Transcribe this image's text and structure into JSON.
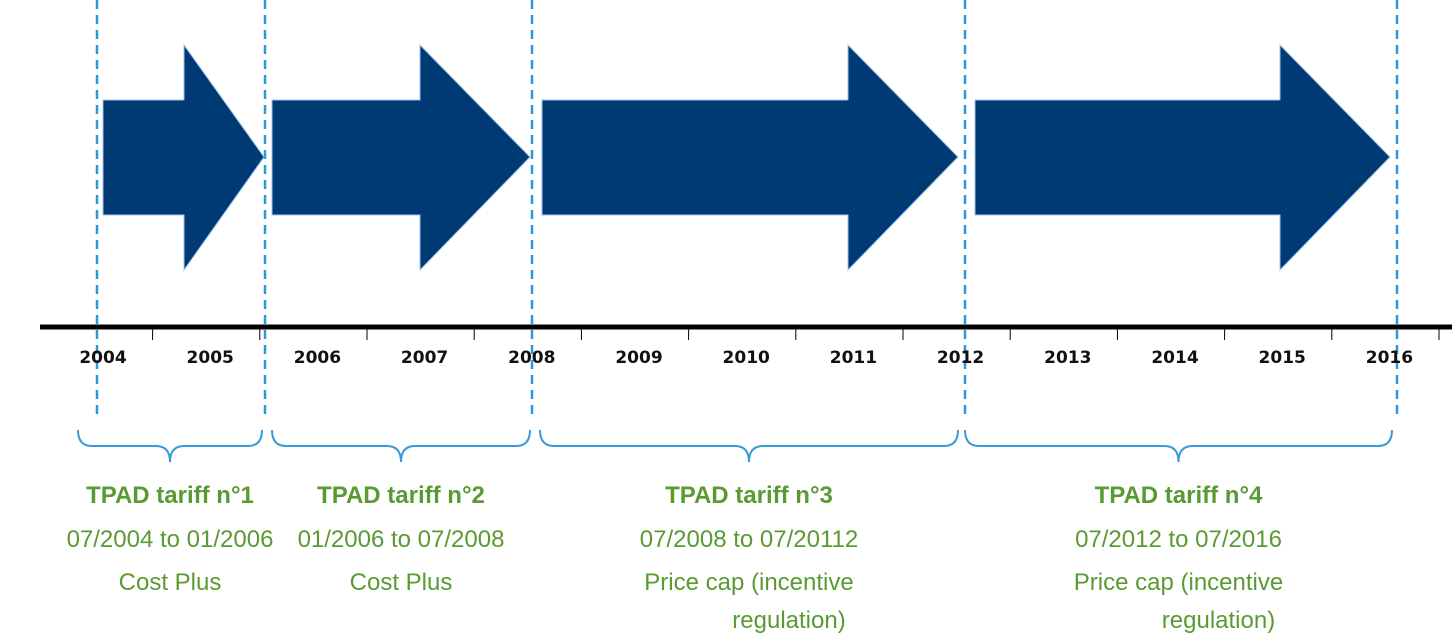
{
  "years": [
    "2004",
    "2005",
    "2006",
    "2007",
    "2008",
    "2009",
    "2010",
    "2011",
    "2012",
    "2013",
    "2014",
    "2015",
    "2016"
  ],
  "periods": [
    {
      "title": "TPAD tariff n°1",
      "dates": "07/2004 to 01/2006",
      "method": [
        "Cost Plus"
      ]
    },
    {
      "title": "TPAD tariff n°2",
      "dates": "01/2006 to 07/2008",
      "method": [
        "Cost Plus"
      ]
    },
    {
      "title": "TPAD tariff n°3",
      "dates": "07/2008 to 07/20112",
      "method": [
        "Price cap (incentive",
        "regulation)"
      ]
    },
    {
      "title": "TPAD tariff n°4",
      "dates": "07/2012 to 07/2016",
      "method": [
        "Price cap (incentive",
        "regulation)"
      ]
    }
  ]
}
